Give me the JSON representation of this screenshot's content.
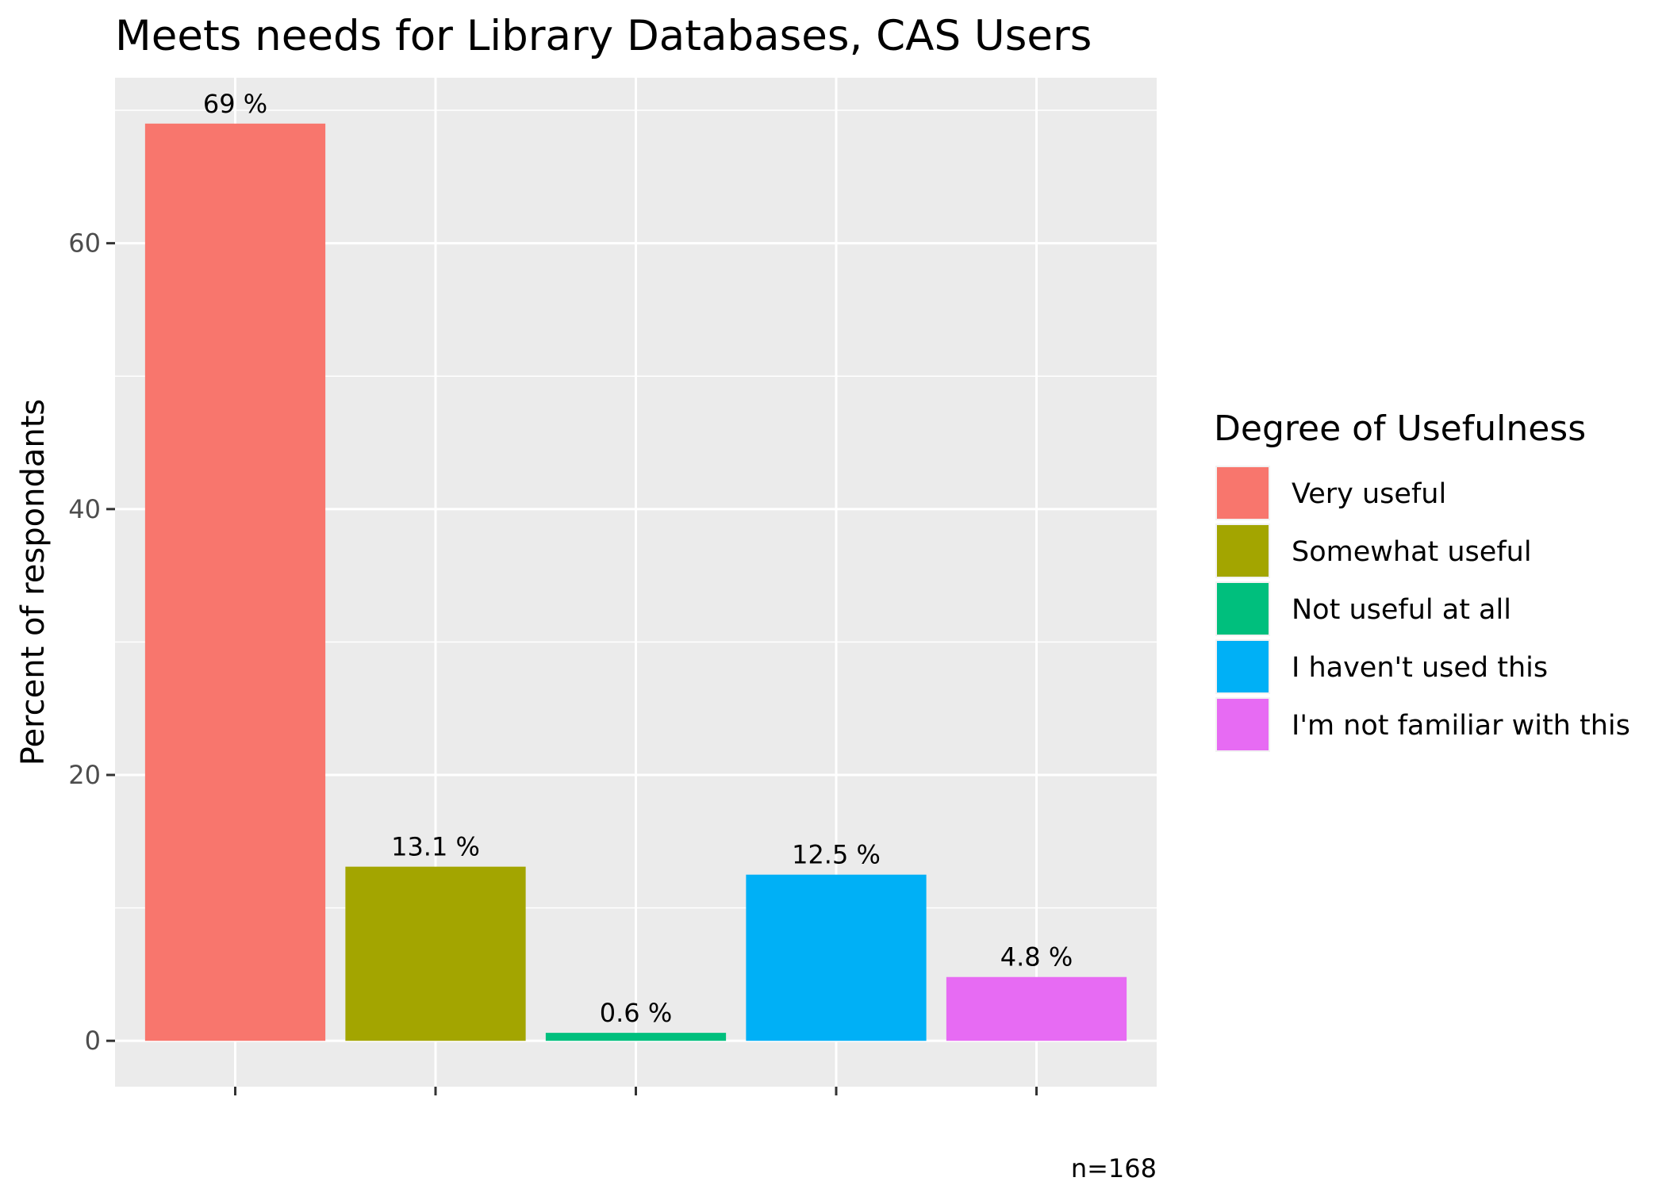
{
  "chart_data": {
    "type": "bar",
    "title": "Meets needs for Library Databases,  CAS Users",
    "xlabel": "",
    "ylabel": "Percent of respondants",
    "categories": [
      "Very useful",
      "Somewhat useful",
      "Not useful at all",
      "I haven't used this",
      "I'm not familiar with this"
    ],
    "values": [
      69,
      13.1,
      0.6,
      12.5,
      4.8
    ],
    "value_labels": [
      "69 %",
      "13.1 %",
      "0.6 %",
      "12.5 %",
      "4.8 %"
    ],
    "colors": [
      "#F8766D",
      "#A3A500",
      "#00BF7D",
      "#00B0F6",
      "#E76BF3"
    ],
    "yticks": [
      0,
      20,
      40,
      60
    ],
    "ylim": [
      -3.45,
      72.45
    ],
    "grid": true,
    "legend": {
      "title": "Degree of Usefulness",
      "placement": "right",
      "entries": [
        "Very useful",
        "Somewhat useful",
        "Not useful at all",
        "I haven't used this",
        "I'm not familiar with this"
      ]
    },
    "caption": "n=168"
  }
}
